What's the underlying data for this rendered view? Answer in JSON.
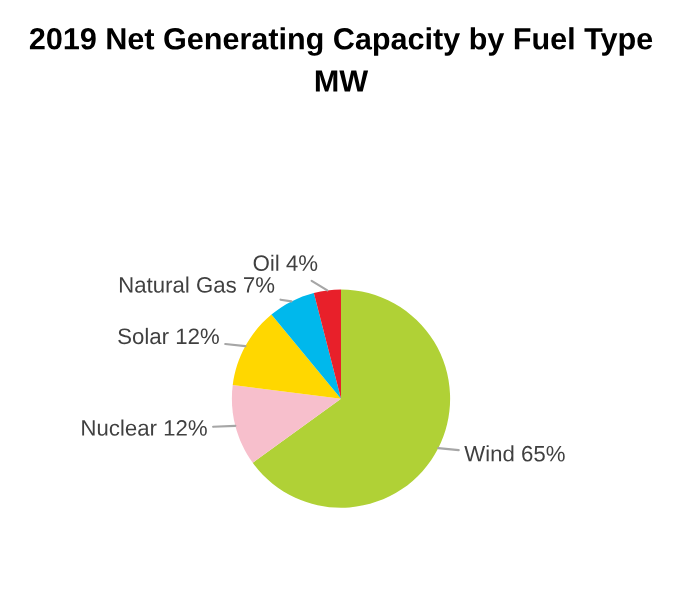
{
  "chart_data": {
    "type": "pie",
    "title": "2019 Net Generating Capacity by Fuel Type",
    "subtitle": "MW",
    "categories": [
      "Wind",
      "Nuclear",
      "Solar",
      "Natural Gas",
      "Oil"
    ],
    "values": [
      65,
      12,
      12,
      7,
      4
    ],
    "value_labels": [
      "65%",
      "12%",
      "12%",
      "7%",
      "4%"
    ],
    "colors": [
      "#b0d136",
      "#f7bfcc",
      "#ffd700",
      "#00b8ec",
      "#e8202a"
    ],
    "legend": false
  }
}
